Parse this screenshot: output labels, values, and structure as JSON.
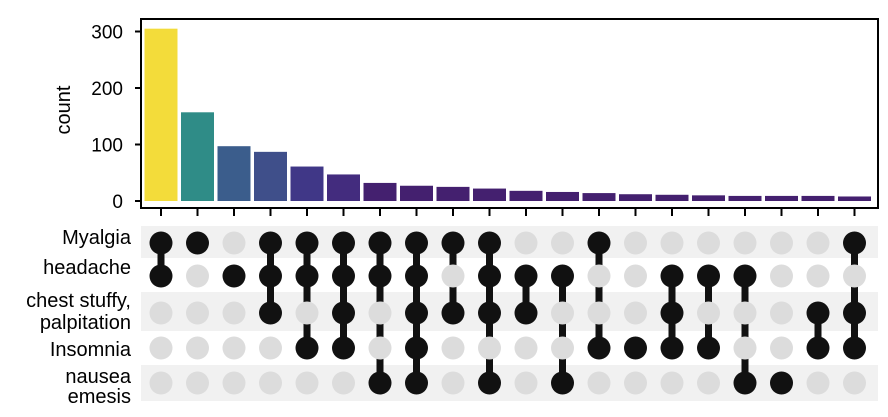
{
  "chart_data": {
    "type": "bar",
    "subtype": "upset",
    "ylabel": "count",
    "ylim": [
      0,
      320
    ],
    "yticks": [
      0,
      100,
      200,
      300
    ],
    "grid": false,
    "legend": "none",
    "sets": [
      {
        "label_lines": [
          "Myalgia"
        ]
      },
      {
        "label_lines": [
          "headache"
        ]
      },
      {
        "label_lines": [
          "chest stuffy,",
          "palpitation"
        ]
      },
      {
        "label_lines": [
          "Insomnia"
        ]
      },
      {
        "label_lines": [
          "nausea",
          "emesis"
        ]
      }
    ],
    "intersections": [
      {
        "members": [
          0,
          1
        ],
        "count": 305
      },
      {
        "members": [
          0
        ],
        "count": 157
      },
      {
        "members": [
          1
        ],
        "count": 97
      },
      {
        "members": [
          0,
          1,
          2
        ],
        "count": 87
      },
      {
        "members": [
          0,
          1,
          3
        ],
        "count": 61
      },
      {
        "members": [
          0,
          1,
          2,
          3
        ],
        "count": 47
      },
      {
        "members": [
          0,
          1,
          4
        ],
        "count": 32
      },
      {
        "members": [
          0,
          1,
          2,
          3,
          4
        ],
        "count": 27
      },
      {
        "members": [
          0,
          2
        ],
        "count": 25
      },
      {
        "members": [
          0,
          1,
          2,
          4
        ],
        "count": 22
      },
      {
        "members": [
          1,
          2
        ],
        "count": 18
      },
      {
        "members": [
          1,
          4
        ],
        "count": 16
      },
      {
        "members": [
          0,
          3
        ],
        "count": 14
      },
      {
        "members": [
          3
        ],
        "count": 12
      },
      {
        "members": [
          1,
          2,
          3
        ],
        "count": 11
      },
      {
        "members": [
          1,
          3
        ],
        "count": 10
      },
      {
        "members": [
          1,
          4
        ],
        "count": 9
      },
      {
        "members": [
          4
        ],
        "count": 9
      },
      {
        "members": [
          2,
          3
        ],
        "count": 9
      },
      {
        "members": [
          0,
          2,
          3
        ],
        "count": 8
      }
    ],
    "bar_colors": [
      "#f3dc3a",
      "#2f8c87",
      "#3b5d8c",
      "#3f4f8a",
      "#403787",
      "#432c7e",
      "#44206f",
      "#44206f",
      "#44206f",
      "#44206f",
      "#44206f",
      "#44206f",
      "#44206f",
      "#44206f",
      "#44206f",
      "#44206f",
      "#44206f",
      "#44206f",
      "#44206f",
      "#44206f"
    ],
    "dot_active_color": "#111111",
    "dot_inactive_color": "#dcdcdc",
    "stripe_color": "#f1f1f1"
  }
}
